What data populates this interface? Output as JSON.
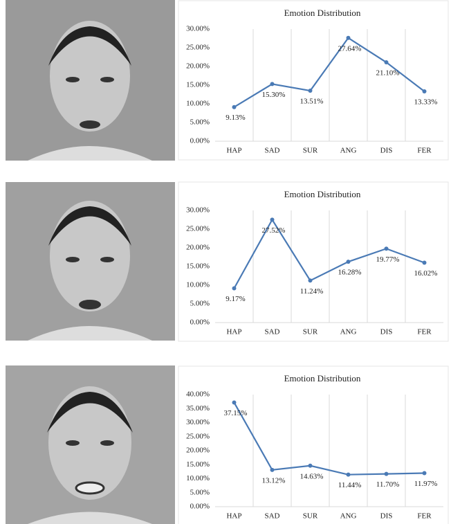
{
  "chart_data": [
    {
      "type": "line",
      "title": "Emotion  Distribution",
      "categories": [
        "HAP",
        "SAD",
        "SUR",
        "ANG",
        "DIS",
        "FER"
      ],
      "values": [
        9.13,
        15.3,
        13.51,
        27.64,
        21.1,
        13.33
      ],
      "value_labels": [
        "9.13%",
        "15.30%",
        "13.51%",
        "27.64%",
        "21.10%",
        "13.33%"
      ],
      "color": "#4a7ab5",
      "ylim": [
        0,
        30
      ],
      "yticks": [
        {
          "value": 0,
          "label": "0.00%"
        },
        {
          "value": 5,
          "label": "5.00%"
        },
        {
          "value": 10,
          "label": "10.00%"
        },
        {
          "value": 15,
          "label": "15.00%"
        },
        {
          "value": 20,
          "label": "20.00%"
        },
        {
          "value": 25,
          "label": "25.00%"
        },
        {
          "value": 30,
          "label": "30.00%"
        }
      ]
    },
    {
      "type": "line",
      "title": "Emotion  Distribution",
      "categories": [
        "HAP",
        "SAD",
        "SUR",
        "ANG",
        "DIS",
        "FER"
      ],
      "values": [
        9.17,
        27.52,
        11.24,
        16.28,
        19.77,
        16.02
      ],
      "value_labels": [
        "9.17%",
        "27.52%",
        "11.24%",
        "16.28%",
        "19.77%",
        "16.02%"
      ],
      "color": "#4a7ab5",
      "ylim": [
        0,
        30
      ],
      "yticks": [
        {
          "value": 0,
          "label": "0.00%"
        },
        {
          "value": 5,
          "label": "5.00%"
        },
        {
          "value": 10,
          "label": "10.00%"
        },
        {
          "value": 15,
          "label": "15.00%"
        },
        {
          "value": 20,
          "label": "20.00%"
        },
        {
          "value": 25,
          "label": "25.00%"
        },
        {
          "value": 30,
          "label": "30.00%"
        }
      ]
    },
    {
      "type": "line",
      "title": "Emotion  Distribution",
      "categories": [
        "HAP",
        "SAD",
        "SUR",
        "ANG",
        "DIS",
        "FER"
      ],
      "values": [
        37.15,
        13.12,
        14.63,
        11.44,
        11.7,
        11.97
      ],
      "value_labels": [
        "37.15%",
        "13.12%",
        "14.63%",
        "11.44%",
        "11.70%",
        "11.97%"
      ],
      "color": "#4a7ab5",
      "ylim": [
        0,
        40
      ],
      "yticks": [
        {
          "value": 0,
          "label": "0.00%"
        },
        {
          "value": 5,
          "label": "5.00%"
        },
        {
          "value": 10,
          "label": "10.00%"
        },
        {
          "value": 15,
          "label": "15.00%"
        },
        {
          "value": 20,
          "label": "20.00%"
        },
        {
          "value": 25,
          "label": "25.00%"
        },
        {
          "value": 30,
          "label": "30.00%"
        },
        {
          "value": 35,
          "label": "35.00%"
        },
        {
          "value": 40,
          "label": "40.00%"
        }
      ]
    }
  ]
}
